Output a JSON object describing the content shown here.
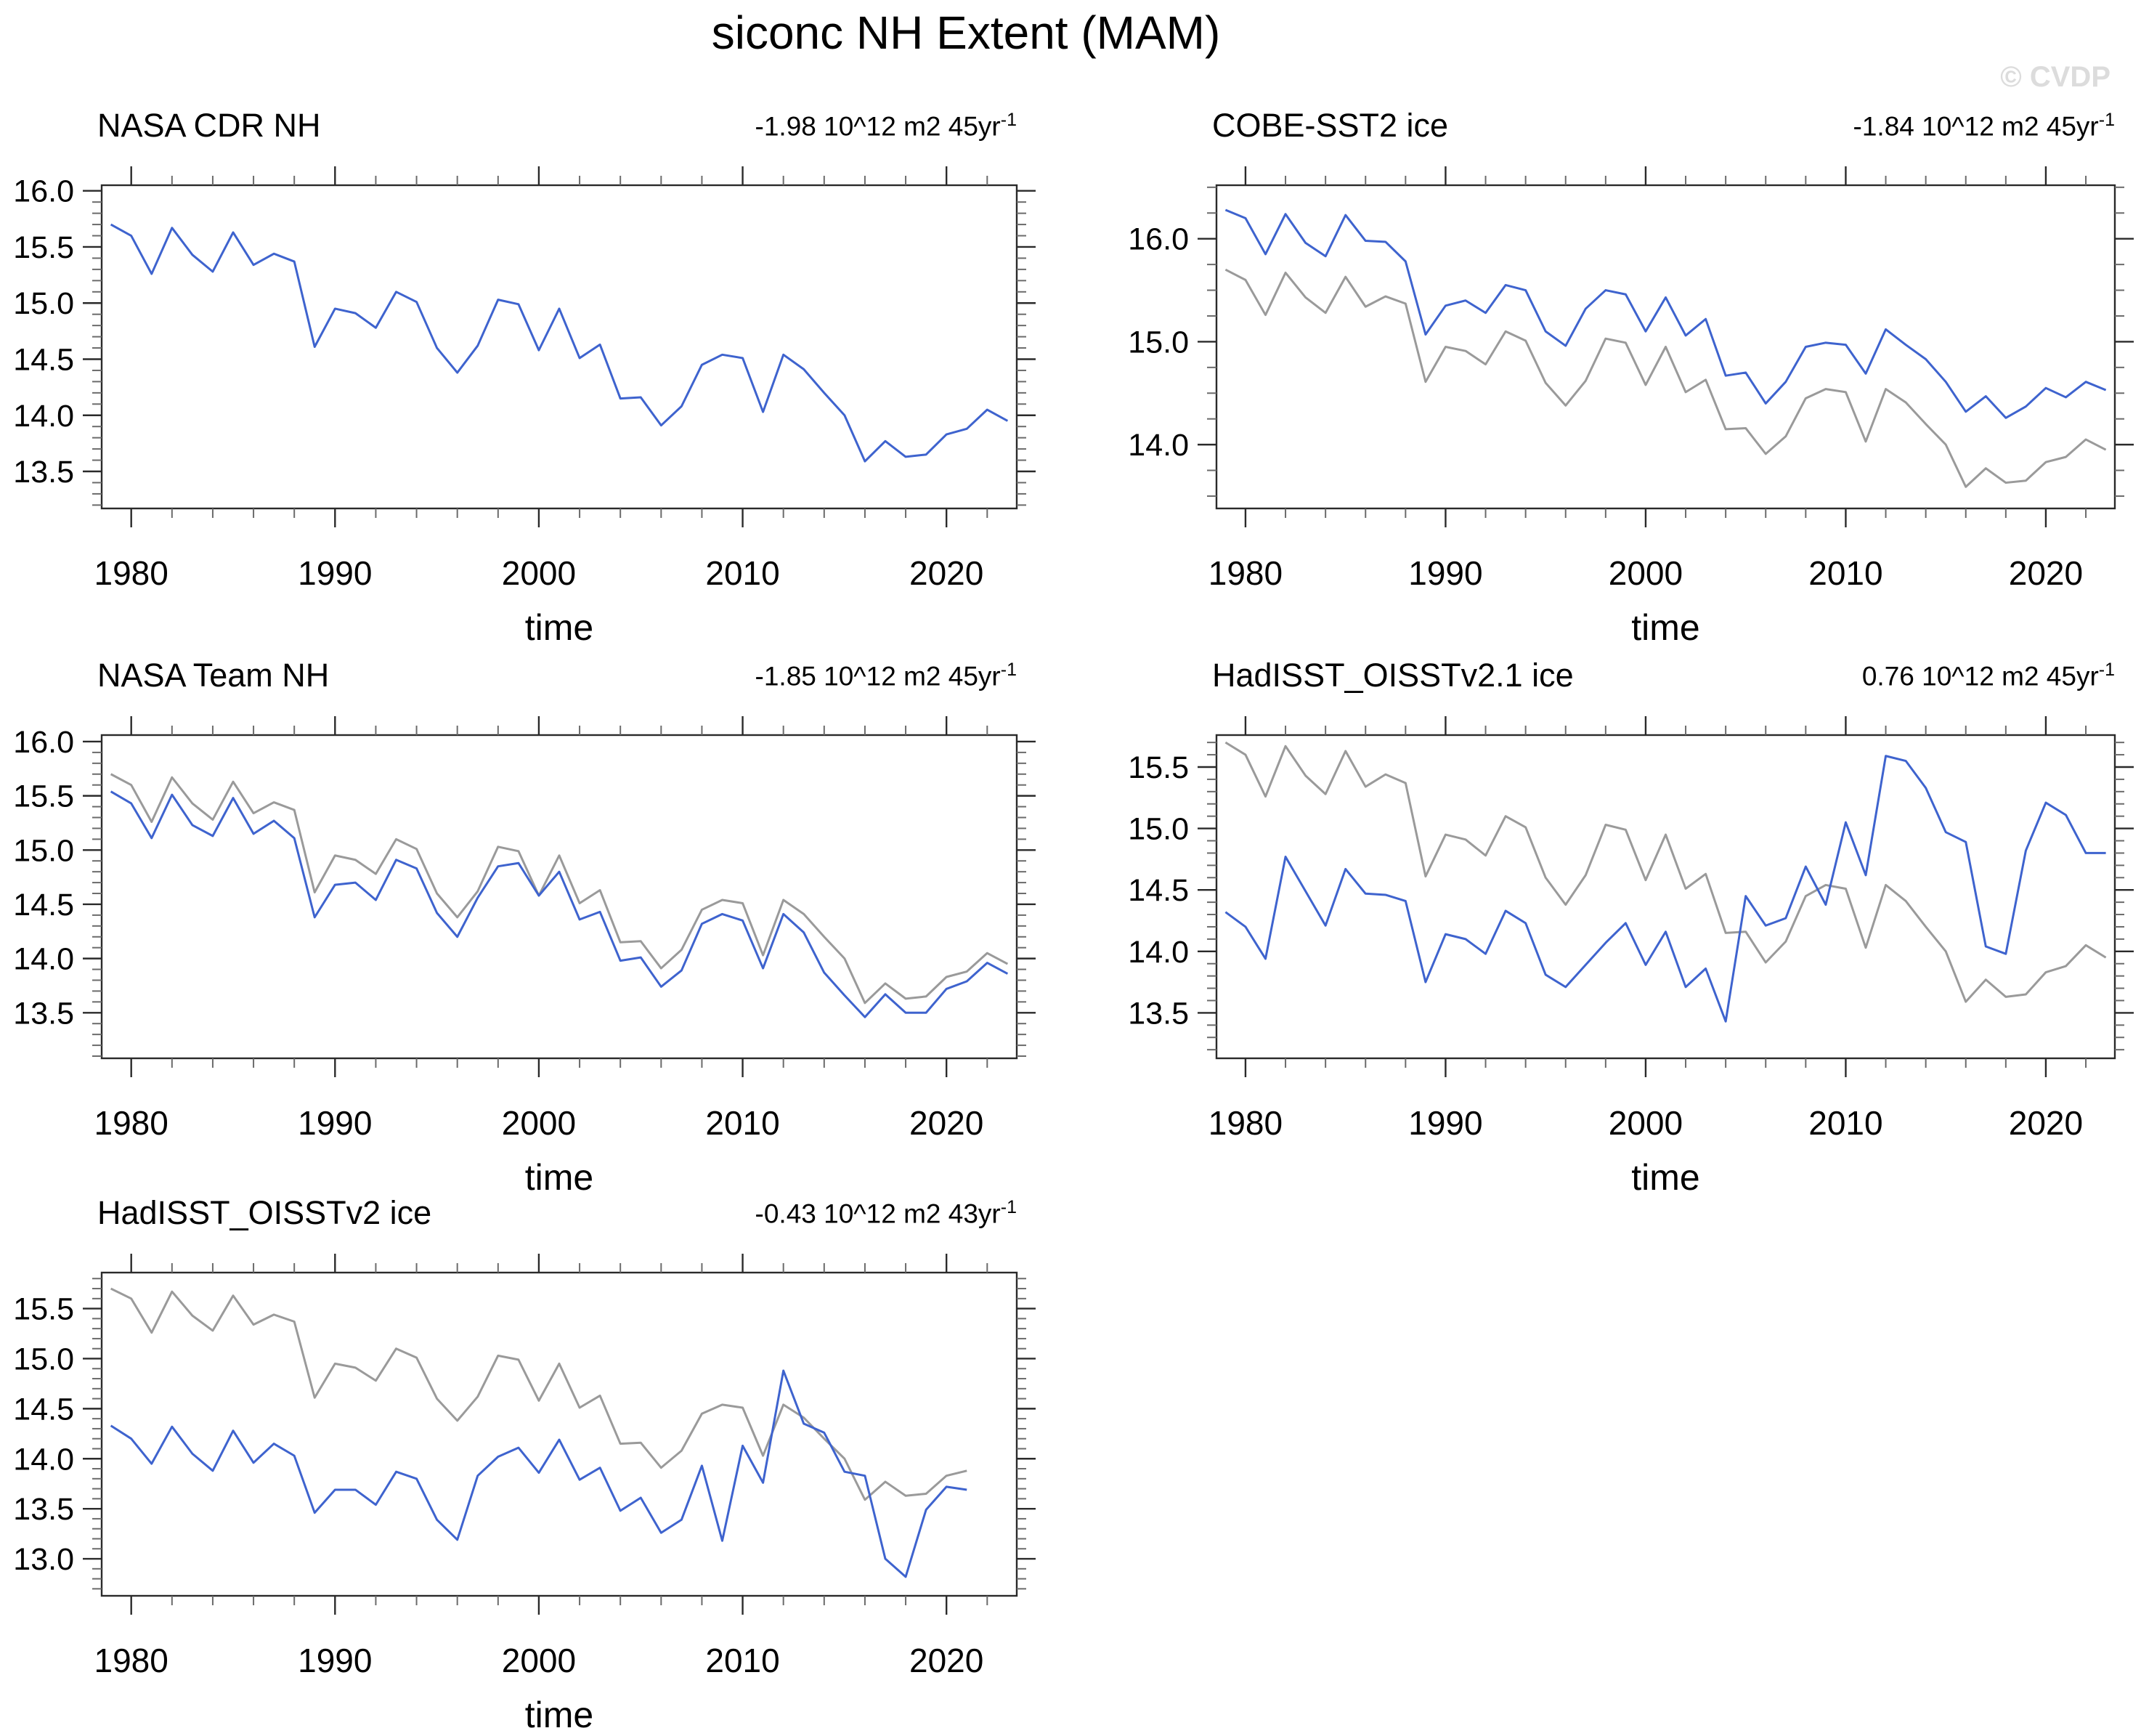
{
  "title": "siconc NH Extent (MAM)",
  "watermark": "© CVDP",
  "colors": {
    "line_blue": "#3e63ce",
    "line_gray": "#9a9a9a",
    "axis": "#2a2a2a",
    "minor_tick": "#6b6b6b",
    "watermark": "#dcdcdc",
    "text": "#000000"
  },
  "reference_series": {
    "name": "NASA CDR NH (reference, gray)",
    "start_year": 1979,
    "values": [
      15.7,
      15.6,
      15.26,
      15.67,
      15.43,
      15.28,
      15.63,
      15.34,
      15.44,
      15.37,
      14.61,
      14.95,
      14.91,
      14.78,
      15.1,
      15.01,
      14.6,
      14.38,
      14.62,
      15.03,
      14.99,
      14.58,
      14.95,
      14.51,
      14.63,
      14.15,
      14.16,
      13.91,
      14.08,
      14.45,
      14.54,
      14.51,
      14.03,
      14.54,
      14.41,
      14.2,
      14.0,
      13.59,
      13.77,
      13.63,
      13.65,
      13.83,
      13.88,
      14.05,
      13.95
    ]
  },
  "chart_data": [
    {
      "type": "line",
      "title": "NASA CDR NH",
      "trend": "-1.98 10^12 m2 45yr",
      "trend_exp": "-1",
      "xlabel": "time",
      "x_tick_labels": [
        "1980",
        "1990",
        "2000",
        "2010",
        "2020"
      ],
      "x_minor_step": 2,
      "xlim": [
        1978.55,
        2023.45
      ],
      "ylim": [
        13.17,
        16.05
      ],
      "y_major_labels": [
        16.0,
        15.5,
        15.0,
        14.5,
        14.0,
        13.5
      ],
      "y_major_step": 0.5,
      "y_minor_step": 0.1,
      "start_year": 1979,
      "end_year": 2023,
      "show_reference_gray": false,
      "values": [
        15.7,
        15.6,
        15.26,
        15.67,
        15.43,
        15.28,
        15.63,
        15.34,
        15.44,
        15.37,
        14.61,
        14.95,
        14.91,
        14.78,
        15.1,
        15.01,
        14.6,
        14.38,
        14.62,
        15.03,
        14.99,
        14.58,
        14.95,
        14.51,
        14.63,
        14.15,
        14.16,
        13.91,
        14.08,
        14.45,
        14.54,
        14.51,
        14.03,
        14.54,
        14.41,
        14.2,
        14.0,
        13.59,
        13.77,
        13.63,
        13.65,
        13.83,
        13.88,
        14.05,
        13.95
      ]
    },
    {
      "type": "line",
      "title": "COBE-SST2 ice",
      "trend": "-1.84 10^12 m2 45yr",
      "trend_exp": "-1",
      "xlabel": "time",
      "x_tick_labels": [
        "1980",
        "1990",
        "2000",
        "2010",
        "2020"
      ],
      "x_minor_step": 2,
      "xlim": [
        1978.55,
        2023.45
      ],
      "ylim": [
        13.38,
        16.52
      ],
      "y_major_labels": [
        16.0,
        15.0,
        14.0
      ],
      "y_major_step": 1.0,
      "y_minor_step": 0.25,
      "start_year": 1979,
      "end_year": 2023,
      "show_reference_gray": true,
      "values": [
        16.28,
        16.2,
        15.85,
        16.24,
        15.96,
        15.83,
        16.23,
        15.98,
        15.97,
        15.78,
        15.07,
        15.35,
        15.4,
        15.28,
        15.55,
        15.5,
        15.1,
        14.96,
        15.32,
        15.5,
        15.46,
        15.1,
        15.43,
        15.06,
        15.22,
        14.67,
        14.7,
        14.4,
        14.61,
        14.95,
        14.99,
        14.97,
        14.69,
        15.12,
        14.97,
        14.83,
        14.61,
        14.32,
        14.47,
        14.26,
        14.37,
        14.55,
        14.46,
        14.61,
        14.53
      ]
    },
    {
      "type": "line",
      "title": "NASA Team NH",
      "trend": "-1.85 10^12 m2 45yr",
      "trend_exp": "-1",
      "xlabel": "time",
      "x_tick_labels": [
        "1980",
        "1990",
        "2000",
        "2010",
        "2020"
      ],
      "x_minor_step": 2,
      "xlim": [
        1978.55,
        2023.45
      ],
      "ylim": [
        13.08,
        16.06
      ],
      "y_major_labels": [
        16.0,
        15.5,
        15.0,
        14.5,
        14.0,
        13.5
      ],
      "y_major_step": 0.5,
      "y_minor_step": 0.1,
      "start_year": 1979,
      "end_year": 2023,
      "show_reference_gray": true,
      "values": [
        15.54,
        15.43,
        15.11,
        15.51,
        15.23,
        15.13,
        15.48,
        15.15,
        15.27,
        15.11,
        14.38,
        14.68,
        14.7,
        14.54,
        14.91,
        14.83,
        14.42,
        14.2,
        14.56,
        14.85,
        14.88,
        14.58,
        14.8,
        14.36,
        14.43,
        13.98,
        14.01,
        13.74,
        13.89,
        14.32,
        14.41,
        14.35,
        13.91,
        14.41,
        14.24,
        13.87,
        13.66,
        13.46,
        13.67,
        13.5,
        13.5,
        13.72,
        13.79,
        13.96,
        13.86
      ]
    },
    {
      "type": "line",
      "title": "HadISST_OISSTv2.1 ice",
      "trend": "0.76 10^12 m2 45yr",
      "trend_exp": "-1",
      "xlabel": "time",
      "x_tick_labels": [
        "1980",
        "1990",
        "2000",
        "2010",
        "2020"
      ],
      "x_minor_step": 2,
      "xlim": [
        1978.55,
        2023.45
      ],
      "ylim": [
        13.13,
        15.76
      ],
      "y_major_labels": [
        15.5,
        15.0,
        14.5,
        14.0,
        13.5
      ],
      "y_major_step": 0.5,
      "y_minor_step": 0.1,
      "start_year": 1979,
      "end_year": 2023,
      "show_reference_gray": true,
      "values": [
        14.32,
        14.2,
        13.94,
        14.77,
        14.49,
        14.21,
        14.67,
        14.47,
        14.46,
        14.41,
        13.75,
        14.14,
        14.1,
        13.98,
        14.33,
        14.23,
        13.81,
        13.71,
        13.89,
        14.07,
        14.23,
        13.89,
        14.16,
        13.71,
        13.86,
        13.43,
        14.45,
        14.21,
        14.27,
        14.69,
        14.38,
        15.05,
        14.62,
        15.59,
        15.55,
        15.33,
        14.97,
        14.89,
        14.04,
        13.98,
        14.82,
        15.21,
        15.11,
        14.8,
        14.8
      ]
    },
    {
      "type": "line",
      "title": "HadISST_OISSTv2 ice",
      "trend": "-0.43 10^12 m2 43yr",
      "trend_exp": "-1",
      "xlabel": "time",
      "x_tick_labels": [
        "1980",
        "1990",
        "2000",
        "2010",
        "2020"
      ],
      "x_minor_step": 2,
      "xlim": [
        1978.55,
        2023.45
      ],
      "ylim": [
        12.63,
        15.86
      ],
      "y_major_labels": [
        15.5,
        15.0,
        14.5,
        14.0,
        13.5,
        13.0
      ],
      "y_major_step": 0.5,
      "y_minor_step": 0.1,
      "start_year": 1979,
      "end_year": 2021,
      "show_reference_gray": true,
      "values": [
        14.33,
        14.2,
        13.95,
        14.32,
        14.05,
        13.88,
        14.28,
        13.96,
        14.15,
        14.03,
        13.46,
        13.69,
        13.69,
        13.54,
        13.87,
        13.8,
        13.39,
        13.19,
        13.83,
        14.02,
        14.11,
        13.86,
        14.19,
        13.79,
        13.91,
        13.48,
        13.61,
        13.26,
        13.39,
        13.93,
        13.18,
        14.13,
        13.76,
        14.88,
        14.35,
        14.26,
        13.87,
        13.83,
        13.0,
        12.82,
        13.49,
        13.72,
        13.69
      ]
    }
  ]
}
